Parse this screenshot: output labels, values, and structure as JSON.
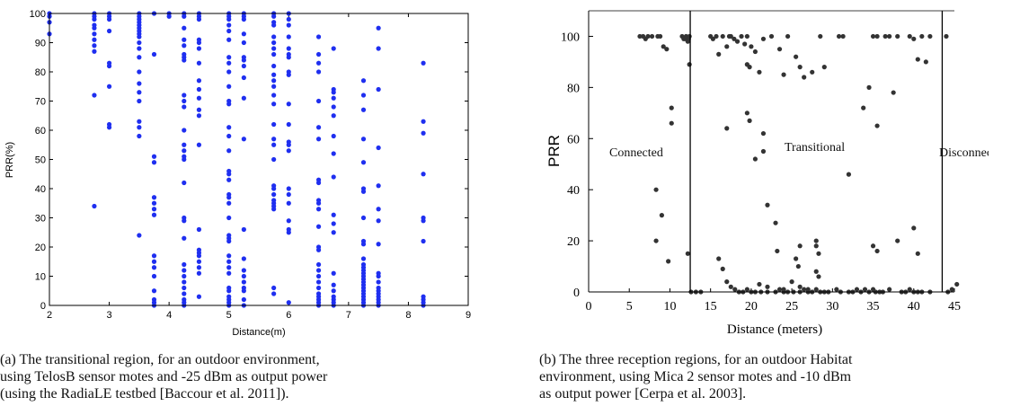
{
  "chart_data": [
    {
      "type": "scatter",
      "xlabel": "Distance(m)",
      "ylabel": "PRR(%)",
      "xlim": [
        2,
        9
      ],
      "ylim": [
        0,
        100
      ],
      "x_ticks": [
        "2",
        "3",
        "4",
        "5",
        "6",
        "7",
        "8",
        "9"
      ],
      "y_ticks": [
        "0",
        "10",
        "20",
        "30",
        "40",
        "50",
        "60",
        "70",
        "80",
        "90",
        "100"
      ],
      "grid": false,
      "marker_color": "#1f2ff0",
      "columns": [
        {
          "x": 2.0,
          "y": [
            100,
            99,
            97,
            93
          ]
        },
        {
          "x": 2.75,
          "y": [
            100,
            99,
            98,
            96,
            95,
            93,
            91,
            89,
            87,
            72,
            34
          ]
        },
        {
          "x": 3.0,
          "y": [
            100,
            99,
            98,
            94,
            83,
            82,
            75,
            62,
            61
          ]
        },
        {
          "x": 3.5,
          "y": [
            100,
            99,
            98,
            97,
            96,
            95,
            94,
            93,
            92,
            90,
            88,
            85,
            80,
            76,
            73,
            70,
            63,
            61,
            58,
            24
          ]
        },
        {
          "x": 3.75,
          "y": [
            100,
            86,
            51,
            49,
            37,
            35,
            33,
            31,
            17,
            15,
            13,
            10,
            5,
            2,
            1,
            0
          ]
        },
        {
          "x": 4.0,
          "y": [
            100,
            99
          ]
        },
        {
          "x": 4.25,
          "y": [
            100,
            99,
            95,
            91,
            89,
            86,
            85,
            84,
            72,
            70,
            68,
            60,
            55,
            53,
            51,
            50,
            42,
            30,
            29,
            23,
            14,
            12,
            10,
            8,
            6,
            4,
            2,
            1,
            0
          ]
        },
        {
          "x": 4.5,
          "y": [
            100,
            99,
            98,
            91,
            90,
            88,
            83,
            77,
            74,
            71,
            67,
            65,
            55,
            26,
            19,
            18,
            17,
            15,
            13,
            11,
            3
          ]
        },
        {
          "x": 5.0,
          "y": [
            100,
            99,
            98,
            96,
            94,
            91,
            85,
            83,
            80,
            75,
            70,
            69,
            61,
            58,
            53,
            46,
            45,
            43,
            38,
            37,
            35,
            30,
            24,
            23,
            22,
            17,
            15,
            13,
            11,
            6,
            5,
            3,
            2,
            1,
            0
          ]
        },
        {
          "x": 5.25,
          "y": [
            100,
            99,
            98,
            93,
            90,
            85,
            84,
            82,
            78,
            71,
            57,
            26,
            16,
            12,
            10,
            8,
            6,
            5,
            2,
            0
          ]
        },
        {
          "x": 5.75,
          "y": [
            100,
            99,
            97,
            96,
            92,
            90,
            88,
            86,
            82,
            79,
            77,
            75,
            72,
            69,
            62,
            57,
            55,
            50,
            41,
            40,
            38,
            36,
            35,
            34,
            33,
            6,
            4
          ]
        },
        {
          "x": 6.0,
          "y": [
            100,
            98,
            96,
            92,
            88,
            86,
            85,
            80,
            79,
            69,
            62,
            56,
            55,
            53,
            40,
            38,
            35,
            29,
            26,
            25,
            1
          ]
        },
        {
          "x": 6.5,
          "y": [
            92,
            86,
            83,
            80,
            70,
            61,
            57,
            43,
            42,
            36,
            35,
            33,
            27,
            20,
            19,
            14,
            12,
            10,
            8,
            6,
            4,
            3,
            2,
            1,
            0
          ]
        },
        {
          "x": 6.75,
          "y": [
            88,
            74,
            73,
            71,
            68,
            65,
            58,
            52,
            44,
            31,
            28,
            25,
            11,
            7,
            5,
            3,
            2,
            1,
            0
          ]
        },
        {
          "x": 7.25,
          "y": [
            77,
            72,
            67,
            57,
            49,
            40,
            39,
            30,
            22,
            21,
            16,
            14,
            13,
            12,
            11,
            10,
            9,
            8,
            7,
            6,
            5,
            4,
            3,
            2,
            1,
            0
          ]
        },
        {
          "x": 7.5,
          "y": [
            95,
            88,
            74,
            54,
            41,
            33,
            29,
            21,
            11,
            10,
            8,
            6,
            5,
            4,
            3,
            2,
            1,
            0
          ]
        },
        {
          "x": 8.25,
          "y": [
            83,
            63,
            59,
            45,
            30,
            29,
            22,
            3,
            2,
            1,
            0
          ]
        }
      ]
    },
    {
      "type": "scatter",
      "xlabel": "Distance (meters)",
      "ylabel": "PRR",
      "xlim": [
        0,
        45
      ],
      "ylim": [
        0,
        110
      ],
      "x_ticks": [
        "0",
        "5",
        "10",
        "15",
        "20",
        "25",
        "30",
        "35",
        "40",
        "45"
      ],
      "y_ticks": [
        "0",
        "20",
        "40",
        "60",
        "80",
        "100"
      ],
      "region_boundaries": [
        12.5,
        43.5
      ],
      "annotations": [
        "Connected",
        "Transitional",
        "Disconnected"
      ],
      "marker_color": "#333333",
      "points": [
        [
          6.3,
          100
        ],
        [
          6.7,
          100
        ],
        [
          7,
          99
        ],
        [
          7.3,
          100
        ],
        [
          7.8,
          100
        ],
        [
          8.5,
          100
        ],
        [
          8.8,
          100
        ],
        [
          9.2,
          96
        ],
        [
          9.6,
          95
        ],
        [
          10.2,
          72
        ],
        [
          10.2,
          66
        ],
        [
          9,
          30
        ],
        [
          8.3,
          40
        ],
        [
          8.3,
          20
        ],
        [
          9.8,
          12
        ],
        [
          11.5,
          100
        ],
        [
          11.7,
          99
        ],
        [
          11.9,
          99
        ],
        [
          12,
          100
        ],
        [
          12.2,
          98
        ],
        [
          12.3,
          99
        ],
        [
          12.4,
          100
        ],
        [
          12.4,
          89
        ],
        [
          12.2,
          15
        ],
        [
          12.6,
          0
        ],
        [
          13.2,
          0
        ],
        [
          13.8,
          0
        ],
        [
          15,
          100
        ],
        [
          15.3,
          99
        ],
        [
          15.7,
          100
        ],
        [
          16,
          93
        ],
        [
          16.5,
          100
        ],
        [
          17,
          96
        ],
        [
          17.3,
          100
        ],
        [
          17.5,
          100
        ],
        [
          17.9,
          99
        ],
        [
          18.3,
          98
        ],
        [
          18.8,
          100
        ],
        [
          19.2,
          97
        ],
        [
          19.5,
          100
        ],
        [
          19.5,
          89
        ],
        [
          19.8,
          88
        ],
        [
          20,
          96
        ],
        [
          20.5,
          94
        ],
        [
          21,
          86
        ],
        [
          21.5,
          99
        ],
        [
          22.5,
          100
        ],
        [
          23.5,
          95
        ],
        [
          24.5,
          100
        ],
        [
          25.5,
          92
        ],
        [
          26,
          88
        ],
        [
          28.5,
          100
        ],
        [
          29,
          88
        ],
        [
          30.8,
          100
        ],
        [
          31.3,
          100
        ],
        [
          35,
          100
        ],
        [
          35.5,
          100
        ],
        [
          36.5,
          100
        ],
        [
          37,
          100
        ],
        [
          38,
          100
        ],
        [
          39.5,
          100
        ],
        [
          40,
          99
        ],
        [
          41,
          100
        ],
        [
          42,
          100
        ],
        [
          44,
          100
        ],
        [
          40.5,
          91
        ],
        [
          41.5,
          90
        ],
        [
          37.5,
          78
        ],
        [
          34.5,
          80
        ],
        [
          33.8,
          72
        ],
        [
          35.5,
          65
        ],
        [
          32,
          46
        ],
        [
          24,
          85
        ],
        [
          26.5,
          84
        ],
        [
          27.5,
          86
        ],
        [
          17,
          64
        ],
        [
          19.5,
          70
        ],
        [
          19.8,
          67
        ],
        [
          20.5,
          52
        ],
        [
          21.5,
          62
        ],
        [
          21.5,
          55
        ],
        [
          22,
          34
        ],
        [
          23,
          27
        ],
        [
          23.2,
          16
        ],
        [
          25.5,
          13
        ],
        [
          25.8,
          10
        ],
        [
          26,
          18
        ],
        [
          28,
          20
        ],
        [
          28,
          18
        ],
        [
          28.3,
          15
        ],
        [
          28,
          8
        ],
        [
          28.3,
          6
        ],
        [
          16,
          13
        ],
        [
          16.5,
          9
        ],
        [
          17,
          4
        ],
        [
          17.5,
          2
        ],
        [
          21,
          3
        ],
        [
          22,
          2
        ],
        [
          24,
          1
        ],
        [
          25,
          4
        ],
        [
          26,
          2
        ],
        [
          27,
          1
        ],
        [
          35,
          18
        ],
        [
          35.5,
          16
        ],
        [
          38,
          20
        ],
        [
          40,
          25
        ],
        [
          40.5,
          15
        ],
        [
          18,
          1
        ],
        [
          18.5,
          0
        ],
        [
          19,
          0
        ],
        [
          19.5,
          1
        ],
        [
          20,
          0
        ],
        [
          20.5,
          0
        ],
        [
          21.2,
          0
        ],
        [
          22,
          0
        ],
        [
          23,
          0
        ],
        [
          23.5,
          1
        ],
        [
          24,
          0
        ],
        [
          24.5,
          0
        ],
        [
          25.2,
          0
        ],
        [
          26,
          0
        ],
        [
          26.5,
          1
        ],
        [
          27,
          0
        ],
        [
          27.5,
          0
        ],
        [
          28,
          1
        ],
        [
          28.5,
          0
        ],
        [
          29,
          0
        ],
        [
          29.5,
          0
        ],
        [
          30.5,
          1
        ],
        [
          31,
          0
        ],
        [
          32,
          0
        ],
        [
          32.5,
          0
        ],
        [
          33,
          1
        ],
        [
          33.5,
          0
        ],
        [
          34,
          1
        ],
        [
          34.5,
          0
        ],
        [
          35,
          1
        ],
        [
          35.3,
          0
        ],
        [
          35.8,
          0
        ],
        [
          36.2,
          0
        ],
        [
          37,
          1
        ],
        [
          38.5,
          0
        ],
        [
          39,
          0
        ],
        [
          39.5,
          1
        ],
        [
          40,
          0
        ],
        [
          40.5,
          0
        ],
        [
          41,
          0
        ],
        [
          42,
          0
        ],
        [
          44.2,
          0
        ],
        [
          44.7,
          1
        ],
        [
          45.3,
          3
        ]
      ]
    }
  ],
  "captions": {
    "a": [
      "(a) The transitional region, for an outdoor environment,",
      "using TelosB sensor motes and -25 dBm as output power",
      "(using the RadiaLE testbed [Baccour et al. 2011])."
    ],
    "b": [
      "(b) The three reception regions, for an outdoor Habitat",
      "environment, using Mica 2 sensor motes and -10 dBm",
      "as output power [Cerpa et al. 2003]."
    ]
  }
}
